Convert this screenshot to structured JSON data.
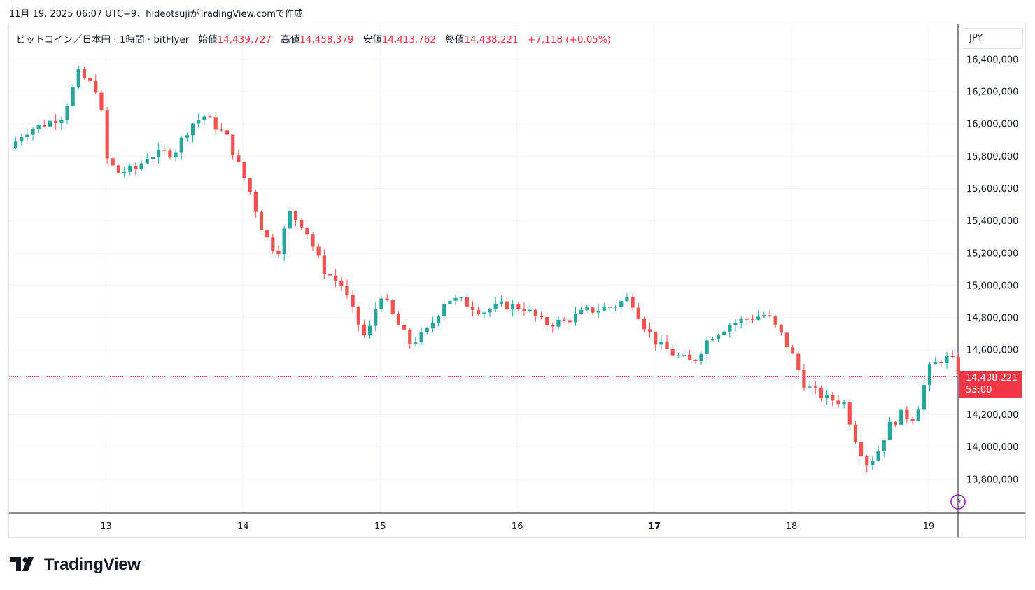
{
  "caption": "11月 19, 2025 06:07 UTC+9、hideotsujiがTradingView.comで作成",
  "legend": {
    "symbol": "ビットコイン／日本円 · 1時間 · bitFlyer",
    "open_label": "始値",
    "open": "14,439,727",
    "high_label": "高値",
    "high": "14,458,379",
    "low_label": "安値",
    "low": "14,413,762",
    "close_label": "終値",
    "close": "14,438,221",
    "change": "+7,118 (+0.05%)"
  },
  "currency_button": "JPY",
  "last_price_label": {
    "price": "14,438,221",
    "countdown": "53:00"
  },
  "brand": "TradingView",
  "colors": {
    "up": "#26a69a",
    "down": "#ef5350",
    "grid": "#f0f3fa",
    "price_line": "#f23645",
    "text": "#131722"
  },
  "chart_data": {
    "type": "candlestick",
    "symbol": "BTC/JPY",
    "interval": "1時間",
    "exchange": "bitFlyer",
    "currency": "JPY",
    "ylim": [
      13600000,
      16700000
    ],
    "y_ticks": [
      13800000,
      14000000,
      14200000,
      14400000,
      14600000,
      14800000,
      15000000,
      15200000,
      15400000,
      15600000,
      15800000,
      16000000,
      16200000,
      16400000
    ],
    "y_tick_labels": [
      "13,800,000",
      "14,000,000",
      "14,200,000",
      "14,400,000",
      "14,600,000",
      "14,800,000",
      "15,000,000",
      "15,200,000",
      "15,400,000",
      "15,600,000",
      "15,800,000",
      "16,000,000",
      "16,200,000",
      "16,400,000"
    ],
    "x_ticks": [
      "13",
      "14",
      "15",
      "16",
      "17",
      "18",
      "19"
    ],
    "x_tick_bold": "17",
    "x_range_days": [
      12.3,
      19.24
    ],
    "last_price": 14438221,
    "grid": true,
    "close_path": [
      [
        12.3,
        15850000
      ],
      [
        12.4,
        15950000
      ],
      [
        12.55,
        16000000
      ],
      [
        12.68,
        16050000
      ],
      [
        12.8,
        16310000
      ],
      [
        12.95,
        16200000
      ],
      [
        13.0,
        15790000
      ],
      [
        13.08,
        15700000
      ],
      [
        13.22,
        15720000
      ],
      [
        13.3,
        15800000
      ],
      [
        13.5,
        15830000
      ],
      [
        13.62,
        16000000
      ],
      [
        13.72,
        16050000
      ],
      [
        13.88,
        15920000
      ],
      [
        13.95,
        15780000
      ],
      [
        14.05,
        15580000
      ],
      [
        14.15,
        15320000
      ],
      [
        14.25,
        15200000
      ],
      [
        14.34,
        15450000
      ],
      [
        14.45,
        15360000
      ],
      [
        14.58,
        15100000
      ],
      [
        14.72,
        15000000
      ],
      [
        14.82,
        14800000
      ],
      [
        14.9,
        14660000
      ],
      [
        15.0,
        14960000
      ],
      [
        15.1,
        14800000
      ],
      [
        15.22,
        14640000
      ],
      [
        15.35,
        14720000
      ],
      [
        15.48,
        14920000
      ],
      [
        15.6,
        14900000
      ],
      [
        15.75,
        14840000
      ],
      [
        15.9,
        14880000
      ],
      [
        16.05,
        14860000
      ],
      [
        16.2,
        14760000
      ],
      [
        16.35,
        14780000
      ],
      [
        16.5,
        14840000
      ],
      [
        16.7,
        14870000
      ],
      [
        16.82,
        14930000
      ],
      [
        16.92,
        14760000
      ],
      [
        17.02,
        14640000
      ],
      [
        17.15,
        14570000
      ],
      [
        17.28,
        14520000
      ],
      [
        17.4,
        14680000
      ],
      [
        17.55,
        14760000
      ],
      [
        17.7,
        14800000
      ],
      [
        17.82,
        14820000
      ],
      [
        17.92,
        14700000
      ],
      [
        18.0,
        14580000
      ],
      [
        18.1,
        14380000
      ],
      [
        18.25,
        14300000
      ],
      [
        18.38,
        14280000
      ],
      [
        18.48,
        14020000
      ],
      [
        18.55,
        13900000
      ],
      [
        18.62,
        13950000
      ],
      [
        18.7,
        14120000
      ],
      [
        18.8,
        14200000
      ],
      [
        18.9,
        14180000
      ],
      [
        19.0,
        14480000
      ],
      [
        19.08,
        14540000
      ],
      [
        19.16,
        14550000
      ],
      [
        19.24,
        14438221
      ]
    ]
  }
}
